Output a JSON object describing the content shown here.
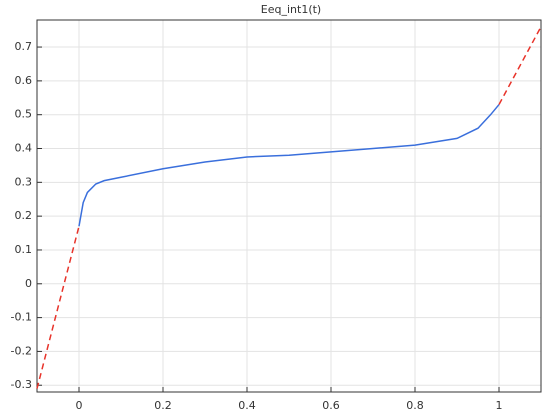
{
  "chart_data": {
    "type": "line",
    "title": "Eeq_int1(t)",
    "xlim": [
      -0.1,
      1.1
    ],
    "xticks": [
      0,
      0.2,
      0.4,
      0.6,
      0.8,
      1
    ],
    "ylim": [
      -0.32,
      0.78
    ],
    "yticks": [
      -0.3,
      -0.2,
      -0.1,
      0,
      0.1,
      0.2,
      0.3,
      0.4,
      0.5,
      0.6,
      0.7
    ],
    "grid": true,
    "series": [
      {
        "color": "#3a6fdc",
        "dashed": false,
        "x": [
          0,
          0.01,
          0.02,
          0.04,
          0.06,
          0.1,
          0.2,
          0.3,
          0.4,
          0.5,
          0.6,
          0.7,
          0.8,
          0.9,
          0.95,
          0.98,
          1
        ],
        "values": [
          0.17,
          0.24,
          0.27,
          0.295,
          0.305,
          0.315,
          0.34,
          0.36,
          0.375,
          0.38,
          0.39,
          0.4,
          0.41,
          0.43,
          0.46,
          0.5,
          0.53
        ]
      },
      {
        "color": "#e8332a",
        "dashed": true,
        "x": [
          -0.1,
          0
        ],
        "values": [
          -0.31,
          0.17
        ]
      },
      {
        "color": "#e8332a",
        "dashed": true,
        "x": [
          1,
          1.1
        ],
        "values": [
          0.53,
          0.76
        ]
      }
    ]
  }
}
